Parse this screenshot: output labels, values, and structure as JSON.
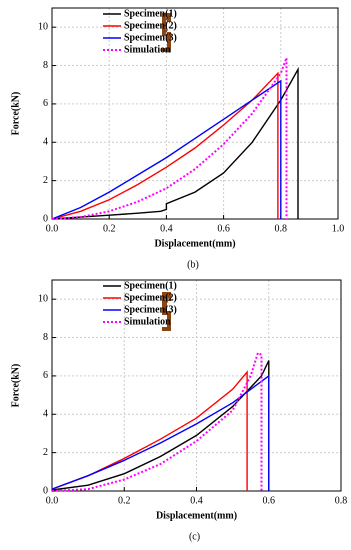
{
  "chart_data": [
    {
      "type": "line",
      "caption": "(b)",
      "xlabel": "Displacement(mm)",
      "ylabel": "Force(kN)",
      "xlim": [
        0,
        1.0
      ],
      "ylim": [
        0,
        11
      ],
      "xticks": [
        {
          "value": 0,
          "label": "0.0"
        },
        {
          "value": 0.2,
          "label": "0.2"
        },
        {
          "value": 0.4,
          "label": "0.4"
        },
        {
          "value": 0.6,
          "label": "0.6"
        },
        {
          "value": 0.8,
          "label": "0.8"
        },
        {
          "value": 1.0,
          "label": "1.0"
        }
      ],
      "yticks": [
        0,
        2,
        4,
        6,
        8,
        10
      ],
      "grid": true,
      "series": [
        {
          "name": "Specimen(1)",
          "color": "#000000",
          "linestyle": "solid",
          "x": [
            0,
            0.1,
            0.2,
            0.3,
            0.38,
            0.4,
            0.4,
            0.5,
            0.6,
            0.7,
            0.8,
            0.86,
            0.86
          ],
          "values": [
            0,
            0.1,
            0.2,
            0.3,
            0.4,
            0.5,
            0.8,
            1.4,
            2.4,
            4.0,
            6.2,
            7.8,
            0
          ]
        },
        {
          "name": "Specimen(2)",
          "color": "#ff0000",
          "linestyle": "solid",
          "x": [
            0,
            0.1,
            0.2,
            0.3,
            0.4,
            0.5,
            0.6,
            0.7,
            0.79,
            0.79
          ],
          "values": [
            0,
            0.4,
            1.0,
            1.8,
            2.7,
            3.7,
            4.9,
            6.2,
            7.6,
            0
          ]
        },
        {
          "name": "Specimen(3)",
          "color": "#0000ff",
          "linestyle": "solid",
          "x": [
            0,
            0.1,
            0.2,
            0.3,
            0.4,
            0.5,
            0.6,
            0.7,
            0.8,
            0.8
          ],
          "values": [
            0,
            0.6,
            1.4,
            2.3,
            3.2,
            4.2,
            5.2,
            6.2,
            7.2,
            0
          ]
        },
        {
          "name": "Simulation",
          "color": "#ff00ff",
          "linestyle": "dotted",
          "x": [
            0,
            0.1,
            0.2,
            0.3,
            0.4,
            0.5,
            0.6,
            0.7,
            0.8,
            0.82,
            0.82
          ],
          "values": [
            0,
            0.1,
            0.4,
            0.9,
            1.6,
            2.6,
            3.9,
            5.5,
            7.6,
            8.4,
            0
          ]
        }
      ]
    },
    {
      "type": "line",
      "caption": "(c)",
      "xlabel": "Displacement(mm)",
      "ylabel": "Force(kN)",
      "xlim": [
        0,
        0.8
      ],
      "ylim": [
        0,
        11
      ],
      "xticks": [
        {
          "value": 0,
          "label": "0.0"
        },
        {
          "value": 0.2,
          "label": "0.2"
        },
        {
          "value": 0.4,
          "label": "0.4"
        },
        {
          "value": 0.6,
          "label": "0.6"
        },
        {
          "value": 0.8,
          "label": "0.8"
        }
      ],
      "yticks": [
        0,
        2,
        4,
        6,
        8,
        10
      ],
      "grid": true,
      "series": [
        {
          "name": "Specimen(1)",
          "color": "#000000",
          "linestyle": "solid",
          "x": [
            0,
            0.1,
            0.2,
            0.3,
            0.4,
            0.5,
            0.58,
            0.6,
            0.6
          ],
          "values": [
            0.05,
            0.3,
            0.9,
            1.8,
            2.9,
            4.4,
            6.0,
            6.8,
            0
          ]
        },
        {
          "name": "Specimen(2)",
          "color": "#ff0000",
          "linestyle": "solid",
          "x": [
            0,
            0.1,
            0.2,
            0.3,
            0.4,
            0.5,
            0.54,
            0.54
          ],
          "values": [
            0.1,
            0.8,
            1.7,
            2.7,
            3.8,
            5.3,
            6.2,
            0
          ]
        },
        {
          "name": "Specimen(3)",
          "color": "#0000ff",
          "linestyle": "solid",
          "x": [
            0,
            0.1,
            0.2,
            0.3,
            0.4,
            0.5,
            0.6,
            0.6
          ],
          "values": [
            0.1,
            0.8,
            1.6,
            2.5,
            3.5,
            4.6,
            6.0,
            0
          ]
        },
        {
          "name": "Simulation",
          "color": "#ff00ff",
          "linestyle": "dotted",
          "x": [
            0,
            0.1,
            0.2,
            0.3,
            0.4,
            0.5,
            0.55,
            0.57,
            0.58,
            0.58
          ],
          "values": [
            0,
            0.1,
            0.6,
            1.4,
            2.6,
            4.2,
            6.0,
            7.2,
            7.1,
            0
          ]
        }
      ]
    }
  ]
}
